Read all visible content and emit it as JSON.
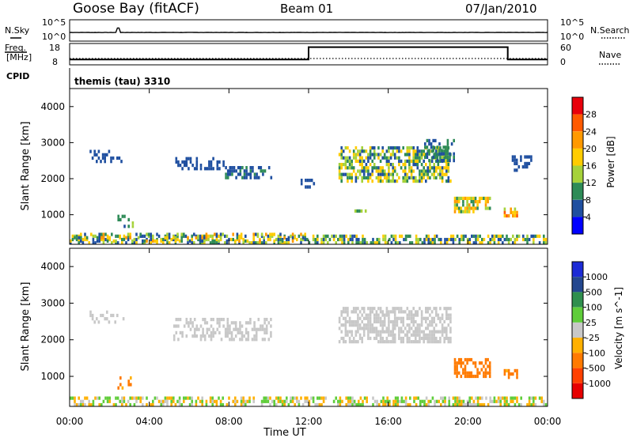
{
  "header": {
    "station": "Goose Bay (fitACF)",
    "beam": "Beam 01",
    "date": "07/Jan/2010"
  },
  "noise_panel": {
    "left_label": "N.Sky",
    "right_label": "N.Search",
    "left_ticks": [
      "10^5",
      "10^0"
    ],
    "right_ticks": [
      "10^5",
      "10^0"
    ]
  },
  "freq_panel": {
    "left_label_line1": "Freq.",
    "left_label_line2": "[MHz]",
    "right_label": "Nave",
    "left_ticks": [
      "18",
      "8"
    ],
    "right_ticks": [
      "60",
      "0"
    ]
  },
  "cpid": {
    "label": "CPID",
    "value": "themis (tau) 3310"
  },
  "axes": {
    "xlabel": "Time UT",
    "xticks": [
      "00:00",
      "04:00",
      "08:00",
      "12:00",
      "16:00",
      "20:00",
      "00:00"
    ],
    "ylabel": "Slant Range [km]",
    "yticks": [
      "4000",
      "3000",
      "2000",
      "1000"
    ]
  },
  "power_colorbar": {
    "label": "Power [dB]",
    "ticks": [
      "28",
      "24",
      "20",
      "16",
      "12",
      "8",
      "4"
    ],
    "colors": [
      "#e8000b",
      "#ff5a00",
      "#ff9900",
      "#ffcc00",
      "#a6d23a",
      "#2e8b57",
      "#1f4fa0",
      "#0000ff"
    ]
  },
  "velocity_colorbar": {
    "label": "Velocity [m s^-1]",
    "ticks": [
      "1000",
      "500",
      "100",
      "25",
      "-25",
      "-100",
      "-500",
      "-1000"
    ],
    "colors": [
      "#1c2bd6",
      "#24478f",
      "#2f8f4e",
      "#5fcd3a",
      "#c8c8c8",
      "#ffb000",
      "#ff7a00",
      "#ff4000",
      "#e60000"
    ]
  },
  "chart_data": [
    {
      "type": "line",
      "title": "Goose Bay (fitACF)",
      "series": [
        {
          "name": "N.Sky",
          "x": [
            "00:00",
            "02:00",
            "02:30",
            "04:00",
            "08:00",
            "12:00",
            "16:00",
            "20:00",
            "24:00"
          ],
          "values": [
            0.3,
            0.35,
            3.0,
            0.4,
            0.5,
            0.45,
            0.45,
            0.35,
            0.3
          ]
        }
      ],
      "ylim": [
        0,
        5
      ],
      "xlabel": "",
      "ylabel": ""
    },
    {
      "type": "line",
      "series": [
        {
          "name": "Freq.",
          "x": [
            "00:00",
            "12:00",
            "12:00",
            "22:00",
            "22:00",
            "24:00"
          ],
          "values": [
            10.5,
            10.5,
            16.3,
            16.3,
            10.5,
            10.5
          ]
        },
        {
          "name": "Nave",
          "x": [
            "00:00",
            "12:00",
            "22:00",
            "24:00"
          ],
          "values": [
            12,
            12,
            12,
            12
          ]
        }
      ],
      "ylim": [
        8,
        18
      ]
    },
    {
      "type": "heatmap",
      "name": "Power",
      "xlabel": "Time UT",
      "ylabel": "Slant Range [km]",
      "xlim": [
        0,
        24
      ],
      "ylim": [
        180,
        4500
      ],
      "colorbar": "Power [dB]",
      "clusters": [
        {
          "t0": 0,
          "t1": 24,
          "r0": 180,
          "r1": 450,
          "density": 0.55,
          "min": 4,
          "max": 20
        },
        {
          "t0": 0.0,
          "t1": 11.9,
          "r0": 250,
          "r1": 500,
          "density": 0.35,
          "min": 4,
          "max": 24
        },
        {
          "t0": 1.0,
          "t1": 2.8,
          "r0": 2400,
          "r1": 2800,
          "density": 0.25,
          "min": 4,
          "max": 8
        },
        {
          "t0": 2.4,
          "t1": 3.2,
          "r0": 600,
          "r1": 1000,
          "density": 0.35,
          "min": 4,
          "max": 16
        },
        {
          "t0": 5.2,
          "t1": 7.8,
          "r0": 2200,
          "r1": 2600,
          "density": 0.45,
          "min": 4,
          "max": 8
        },
        {
          "t0": 7.8,
          "t1": 10.2,
          "r0": 2000,
          "r1": 2350,
          "density": 0.45,
          "min": 4,
          "max": 10
        },
        {
          "t0": 11.6,
          "t1": 12.3,
          "r0": 1700,
          "r1": 2000,
          "density": 0.3,
          "min": 4,
          "max": 8
        },
        {
          "t0": 13.5,
          "t1": 19.2,
          "r0": 1900,
          "r1": 2900,
          "density": 0.6,
          "min": 4,
          "max": 20
        },
        {
          "t0": 17.8,
          "t1": 19.3,
          "r0": 2500,
          "r1": 3100,
          "density": 0.45,
          "min": 4,
          "max": 12
        },
        {
          "t0": 19.3,
          "t1": 21.2,
          "r0": 1000,
          "r1": 1500,
          "density": 0.6,
          "min": 8,
          "max": 24
        },
        {
          "t0": 21.8,
          "t1": 22.5,
          "r0": 900,
          "r1": 1200,
          "density": 0.6,
          "min": 12,
          "max": 28
        },
        {
          "t0": 22.2,
          "t1": 23.3,
          "r0": 2200,
          "r1": 2650,
          "density": 0.35,
          "min": 4,
          "max": 8
        },
        {
          "t0": 14.3,
          "t1": 14.9,
          "r0": 1050,
          "r1": 1150,
          "density": 0.4,
          "min": 8,
          "max": 16
        }
      ]
    },
    {
      "type": "heatmap",
      "name": "Velocity",
      "xlabel": "Time UT",
      "ylabel": "Slant Range [km]",
      "xlim": [
        0,
        24
      ],
      "ylim": [
        180,
        4500
      ],
      "colorbar": "Velocity [m s^-1]",
      "clusters": [
        {
          "t0": 0,
          "t1": 24,
          "r0": 180,
          "r1": 450,
          "density": 0.55,
          "min": -100,
          "max": 100
        },
        {
          "t0": 1.0,
          "t1": 2.8,
          "r0": 2400,
          "r1": 2800,
          "density": 0.25,
          "min": -25,
          "max": 25
        },
        {
          "t0": 2.4,
          "t1": 3.2,
          "r0": 600,
          "r1": 1000,
          "density": 0.35,
          "min": -500,
          "max": 100
        },
        {
          "t0": 5.2,
          "t1": 10.2,
          "r0": 2000,
          "r1": 2600,
          "density": 0.45,
          "min": -25,
          "max": 25
        },
        {
          "t0": 13.5,
          "t1": 19.2,
          "r0": 1900,
          "r1": 2900,
          "density": 0.6,
          "min": -25,
          "max": 25
        },
        {
          "t0": 19.3,
          "t1": 21.2,
          "r0": 1000,
          "r1": 1500,
          "density": 0.6,
          "min": -500,
          "max": -100
        },
        {
          "t0": 21.8,
          "t1": 22.5,
          "r0": 900,
          "r1": 1200,
          "density": 0.6,
          "min": -500,
          "max": -25
        }
      ]
    }
  ]
}
